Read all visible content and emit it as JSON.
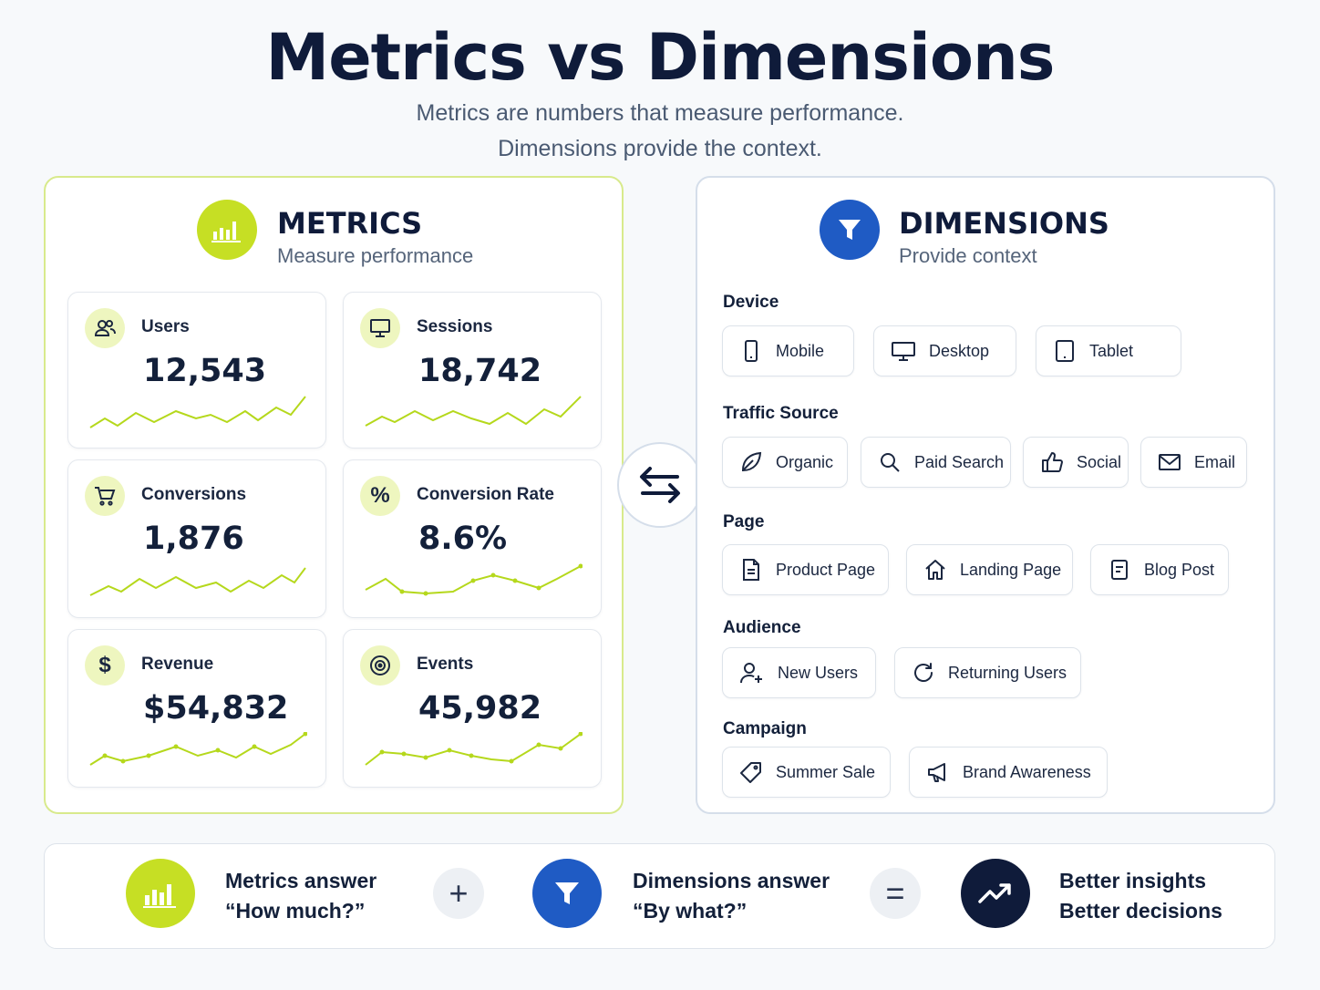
{
  "header": {
    "title": "Metrics vs Dimensions",
    "subtitle_line1": "Metrics are numbers that measure performance.",
    "subtitle_line2": "Dimensions provide the context."
  },
  "metrics": {
    "title": "METRICS",
    "subtitle": "Measure performance",
    "cards": [
      {
        "label": "Users",
        "value": "12,543",
        "icon": "users-icon"
      },
      {
        "label": "Sessions",
        "value": "18,742",
        "icon": "monitor-icon"
      },
      {
        "label": "Conversions",
        "value": "1,876",
        "icon": "cart-icon"
      },
      {
        "label": "Conversion Rate",
        "value": "8.6%",
        "icon": "percent-icon"
      },
      {
        "label": "Revenue",
        "value": "$54,832",
        "icon": "dollar-icon"
      },
      {
        "label": "Events",
        "value": "45,982",
        "icon": "target-icon"
      }
    ]
  },
  "dimensions": {
    "title": "DIMENSIONS",
    "subtitle": "Provide context",
    "sections": [
      {
        "label": "Device",
        "chips": [
          "Mobile",
          "Desktop",
          "Tablet"
        ]
      },
      {
        "label": "Traffic Source",
        "chips": [
          "Organic",
          "Paid Search",
          "Social",
          "Email"
        ]
      },
      {
        "label": "Page",
        "chips": [
          "Product Page",
          "Landing Page",
          "Blog Post"
        ]
      },
      {
        "label": "Audience",
        "chips": [
          "New Users",
          "Returning Users"
        ]
      },
      {
        "label": "Campaign",
        "chips": [
          "Summer Sale",
          "Brand Awareness"
        ]
      }
    ]
  },
  "footer": {
    "metrics_line1": "Metrics answer",
    "metrics_line2": "“How much?”",
    "plus": "+",
    "dims_line1": "Dimensions answer",
    "dims_line2": "“By what?”",
    "equals": "=",
    "result_line1": "Better insights",
    "result_line2": "Better decisions"
  },
  "colors": {
    "metrics_accent": "#c6df24",
    "dimensions_accent": "#1f5bc4",
    "result_accent": "#0f1b3a"
  }
}
